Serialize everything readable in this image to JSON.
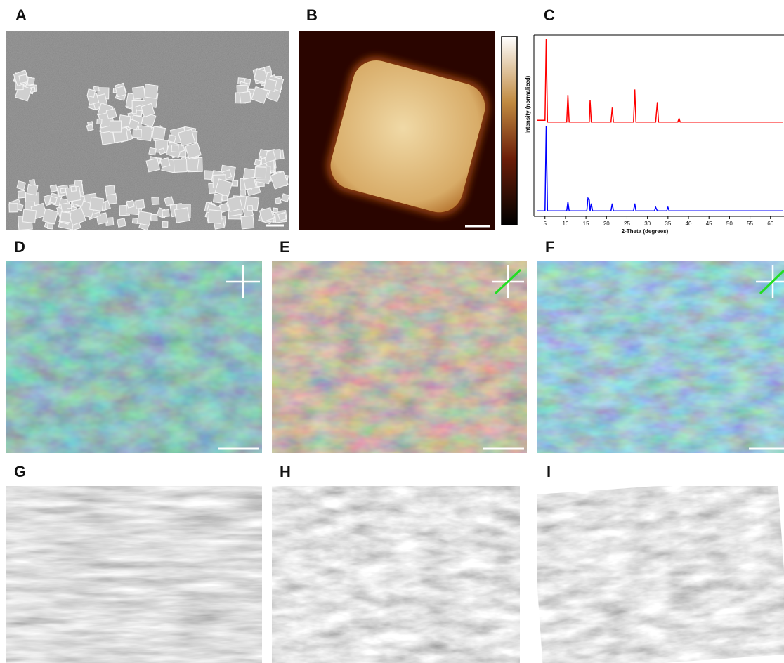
{
  "panels": [
    "A",
    "B",
    "C",
    "D",
    "E",
    "F",
    "G",
    "H",
    "I"
  ],
  "chart_data": {
    "type": "line",
    "xlabel": "2-Theta (degrees)",
    "ylabel": "Intensity (normalized)",
    "x": [
      3,
      5.0,
      5.3,
      5.6,
      10.3,
      10.6,
      10.9,
      15.2,
      15.5,
      15.8,
      16.0,
      16.3,
      16.6,
      21.1,
      21.4,
      21.7,
      26.6,
      26.9,
      27.2,
      31.7,
      32.0,
      32.4,
      32.7,
      34.7,
      35.0,
      35.3,
      37.4,
      37.7,
      38.0,
      63
    ],
    "series": [
      {
        "color": "#ff0000",
        "values": [
          0.53,
          0.53,
          0.98,
          0.52,
          0.52,
          0.67,
          0.52,
          0.52,
          0.52,
          0.52,
          0.64,
          0.52,
          0.52,
          0.52,
          0.6,
          0.52,
          0.52,
          0.7,
          0.52,
          0.52,
          0.52,
          0.63,
          0.52,
          0.52,
          0.52,
          0.52,
          0.52,
          0.54,
          0.52,
          0.52
        ]
      },
      {
        "color": "#0000ff",
        "values": [
          0.03,
          0.03,
          0.5,
          0.03,
          0.03,
          0.08,
          0.03,
          0.03,
          0.1,
          0.09,
          0.03,
          0.07,
          0.03,
          0.03,
          0.07,
          0.03,
          0.03,
          0.07,
          0.03,
          0.03,
          0.05,
          0.03,
          0.03,
          0.03,
          0.05,
          0.03,
          0.03,
          0.03,
          0.03,
          0.03
        ]
      }
    ],
    "xlim": [
      2.3,
      63.3
    ],
    "xticks": [
      5,
      10,
      15,
      20,
      25,
      30,
      35,
      40,
      45,
      50,
      55,
      60
    ],
    "ylim": [
      0,
      1
    ]
  }
}
